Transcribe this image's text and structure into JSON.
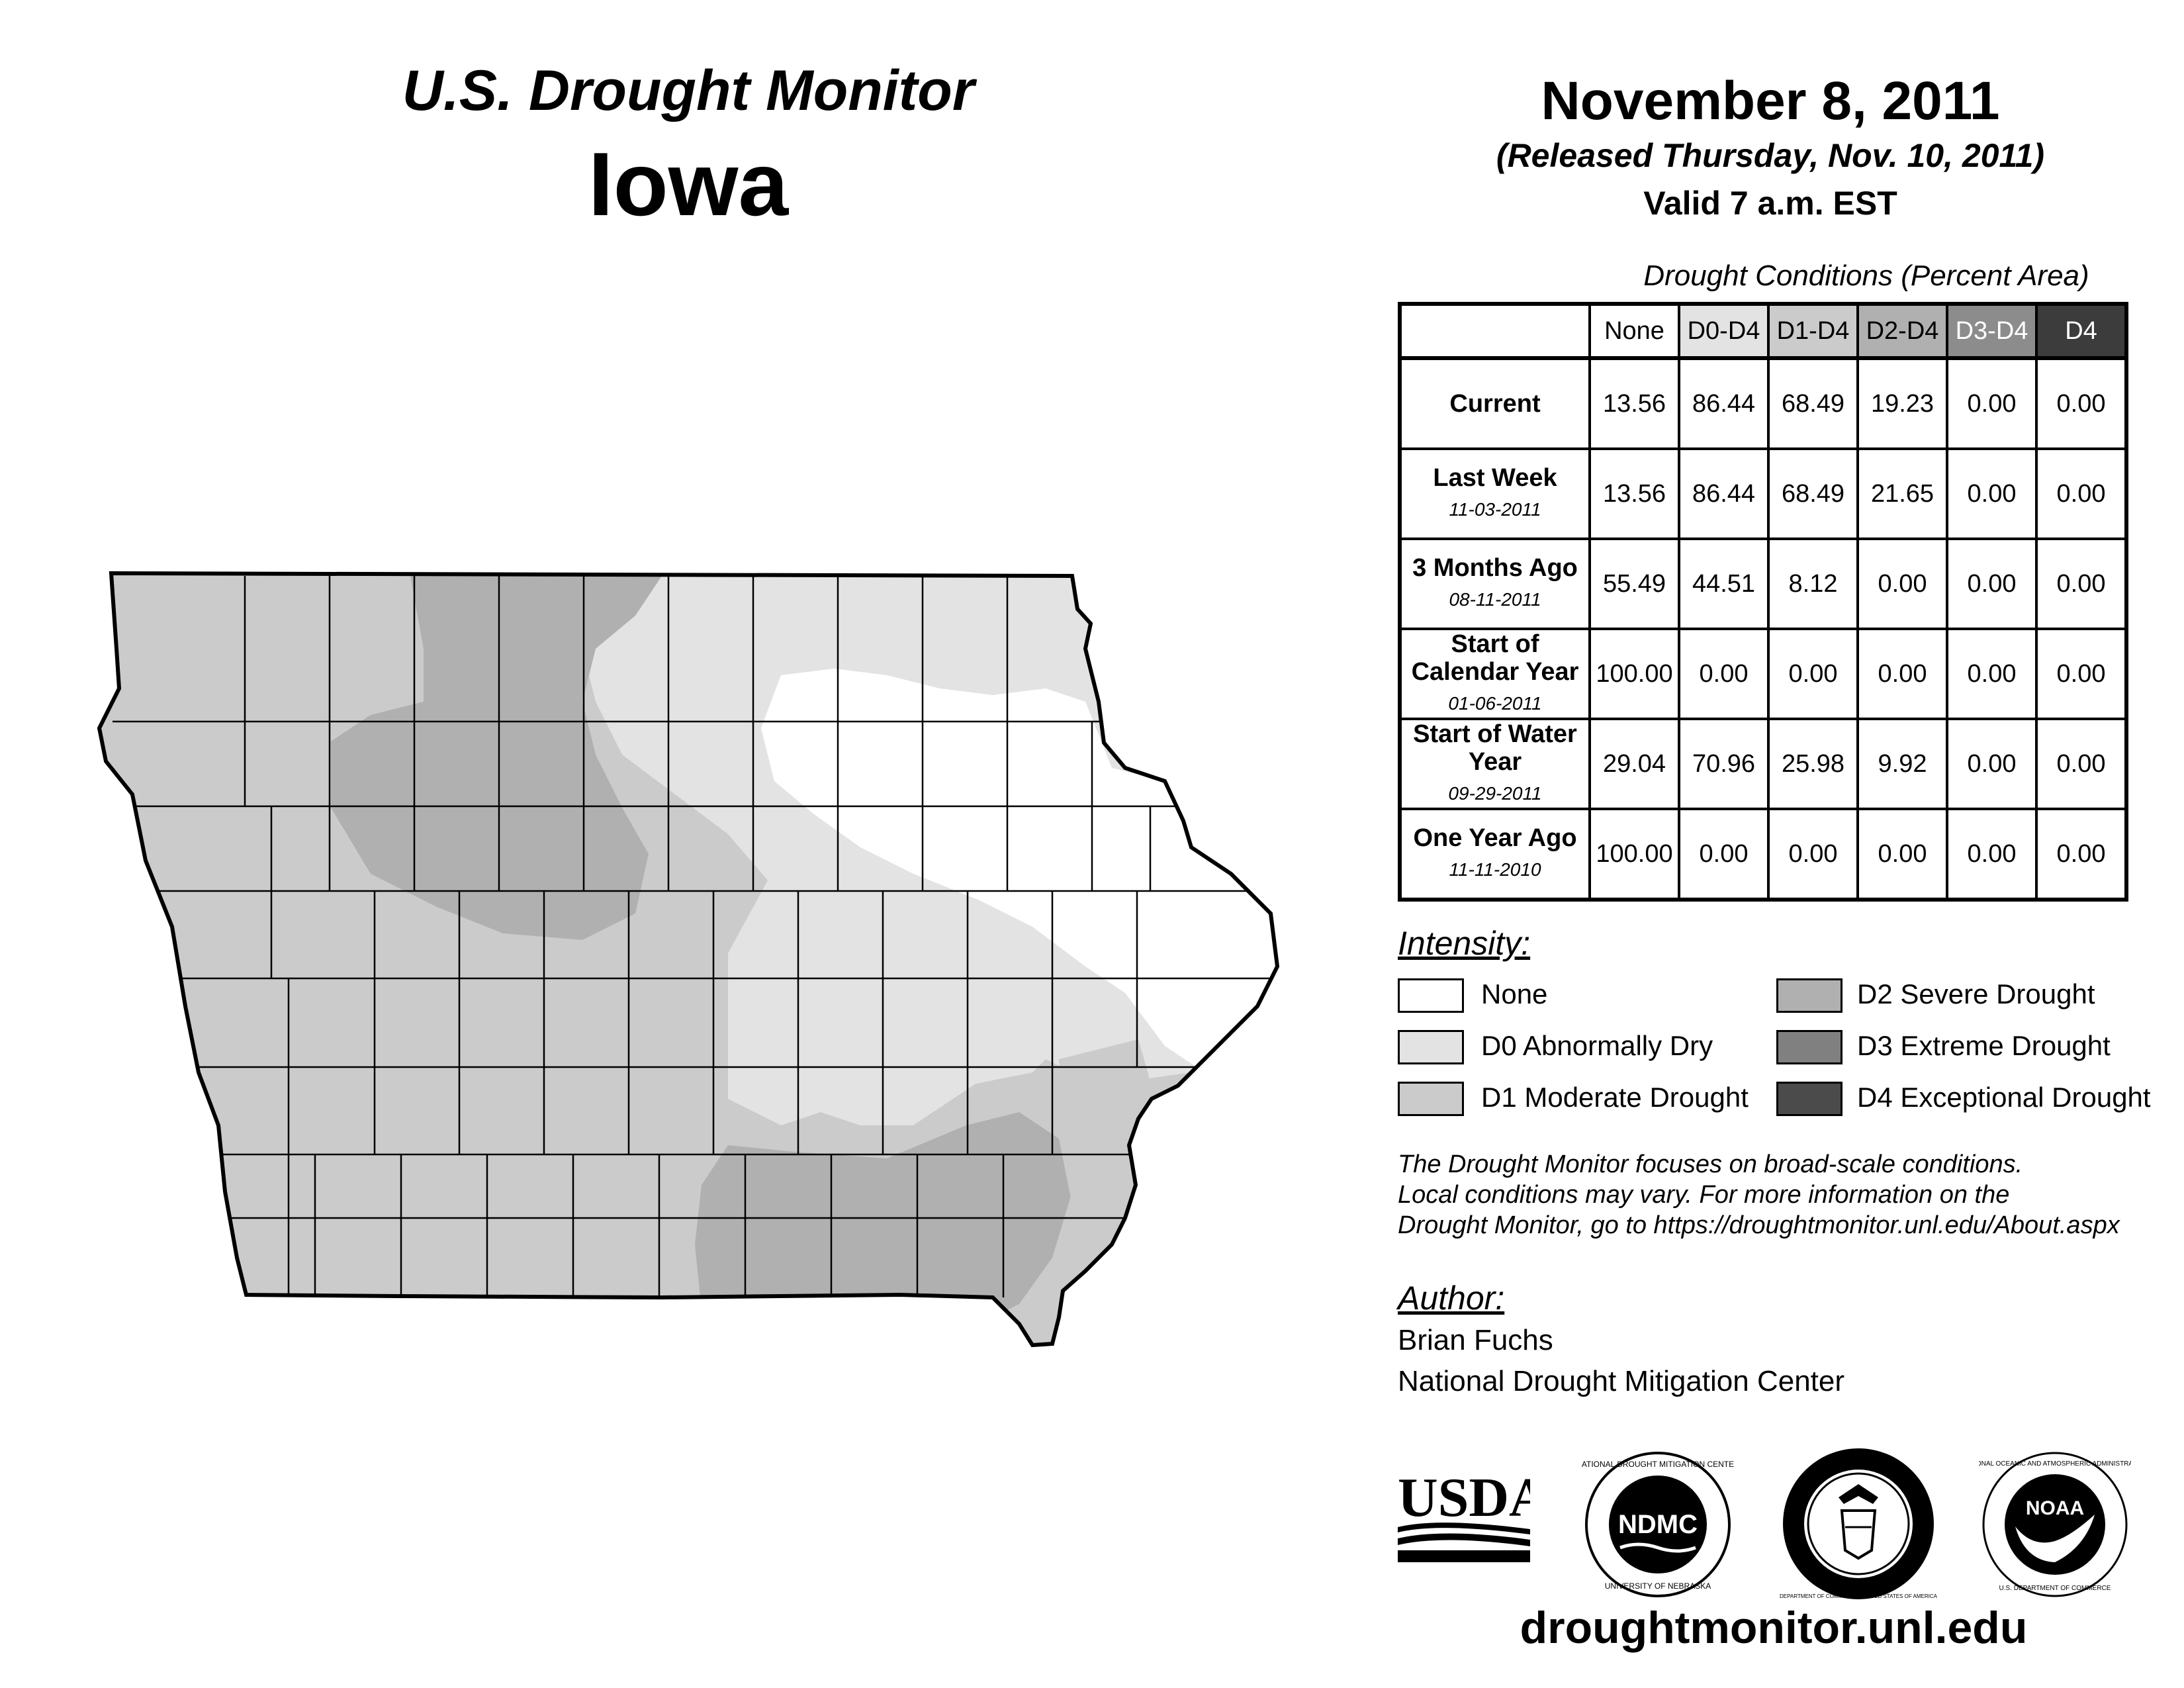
{
  "header": {
    "title": "U.S. Drought Monitor",
    "state": "Iowa",
    "date": "November 8, 2011",
    "released": "(Released Thursday, Nov. 10, 2011)",
    "valid": "Valid 7 a.m. EST"
  },
  "table": {
    "caption": "Drought Conditions (Percent Area)",
    "columns": [
      "None",
      "D0-D4",
      "D1-D4",
      "D2-D4",
      "D3-D4",
      "D4"
    ],
    "rows": [
      {
        "label": "Current",
        "date": "",
        "values": [
          "13.56",
          "86.44",
          "68.49",
          "19.23",
          "0.00",
          "0.00"
        ]
      },
      {
        "label": "Last Week",
        "date": "11-03-2011",
        "values": [
          "13.56",
          "86.44",
          "68.49",
          "21.65",
          "0.00",
          "0.00"
        ]
      },
      {
        "label": "3 Months Ago",
        "date": "08-11-2011",
        "values": [
          "55.49",
          "44.51",
          "8.12",
          "0.00",
          "0.00",
          "0.00"
        ]
      },
      {
        "label": "Start of Calendar Year",
        "date": "01-06-2011",
        "values": [
          "100.00",
          "0.00",
          "0.00",
          "0.00",
          "0.00",
          "0.00"
        ]
      },
      {
        "label": "Start of Water Year",
        "date": "09-29-2011",
        "values": [
          "29.04",
          "70.96",
          "25.98",
          "9.92",
          "0.00",
          "0.00"
        ]
      },
      {
        "label": "One Year Ago",
        "date": "11-11-2010",
        "values": [
          "100.00",
          "0.00",
          "0.00",
          "0.00",
          "0.00",
          "0.00"
        ]
      }
    ]
  },
  "legend": {
    "title": "Intensity:",
    "items": [
      {
        "label": "None",
        "color": "#ffffff"
      },
      {
        "label": "D0 Abnormally Dry",
        "color": "#e3e3e3"
      },
      {
        "label": "D1 Moderate Drought",
        "color": "#cbcbcb"
      },
      {
        "label": "D2 Severe Drought",
        "color": "#b0b0b0"
      },
      {
        "label": "D3 Extreme Drought",
        "color": "#808080"
      },
      {
        "label": "D4 Exceptional Drought",
        "color": "#4b4b4b"
      }
    ]
  },
  "note": {
    "line1": "The Drought Monitor focuses on broad-scale conditions.",
    "line2": "Local conditions may vary. For more information on the",
    "line3": "Drought Monitor, go to https://droughtmonitor.unl.edu/About.aspx"
  },
  "author": {
    "title": "Author:",
    "name": "Brian Fuchs",
    "org": "National Drought Mitigation Center"
  },
  "logos": {
    "usda": "USDA",
    "ndmc": "NDMC",
    "ndmc_ring": "NATIONAL DROUGHT MITIGATION CENTER",
    "ndmc_ring_bottom": "UNIVERSITY OF NEBRASKA",
    "doc_ring": "DEPARTMENT OF COMMERCE · UNITED STATES OF AMERICA",
    "noaa": "NOAA",
    "noaa_ring": "NATIONAL OCEANIC AND ATMOSPHERIC ADMINISTRATION",
    "noaa_ring_bottom": "U.S. DEPARTMENT OF COMMERCE"
  },
  "footer": {
    "url": "droughtmonitor.unl.edu"
  },
  "colors": {
    "none": "#ffffff",
    "d0": "#e3e3e3",
    "d1": "#cbcbcb",
    "d2": "#b0b0b0",
    "d3": "#808080",
    "d4": "#4b4b4b",
    "d3_header": "#8c8c8c",
    "d4_header": "#3c3c3c"
  }
}
